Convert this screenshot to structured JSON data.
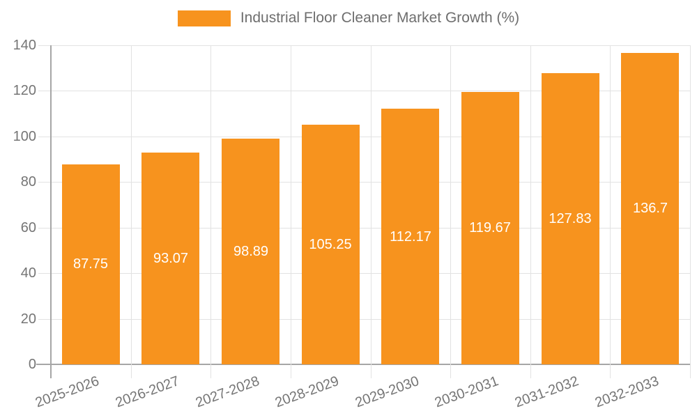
{
  "legend": {
    "label": "Industrial Floor Cleaner Market Growth (%)"
  },
  "chart_data": {
    "type": "bar",
    "title": "Industrial Floor Cleaner Market Growth (%)",
    "categories": [
      "2025-2026",
      "2026-2027",
      "2027-2028",
      "2028-2029",
      "2029-2030",
      "2030-2031",
      "2031-2032",
      "2032-2033"
    ],
    "values": [
      87.75,
      93.07,
      98.89,
      105.25,
      112.17,
      119.67,
      127.83,
      136.7
    ],
    "value_labels": [
      "87.75",
      "93.07",
      "98.89",
      "105.25",
      "112.17",
      "119.67",
      "127.83",
      "136.7"
    ],
    "xlabel": "",
    "ylabel": "",
    "ylim": [
      0,
      140
    ],
    "yticks": [
      0,
      20,
      40,
      60,
      80,
      100,
      120,
      140
    ],
    "grid": true,
    "legend_position": "top-center",
    "colors": {
      "bar": "#f7931e",
      "value_label": "#ffffff",
      "axis_text": "#757575",
      "legend_text": "#6e6e6e",
      "gridline": "#e2e2e2",
      "axis_line": "#a6a6a6"
    }
  }
}
